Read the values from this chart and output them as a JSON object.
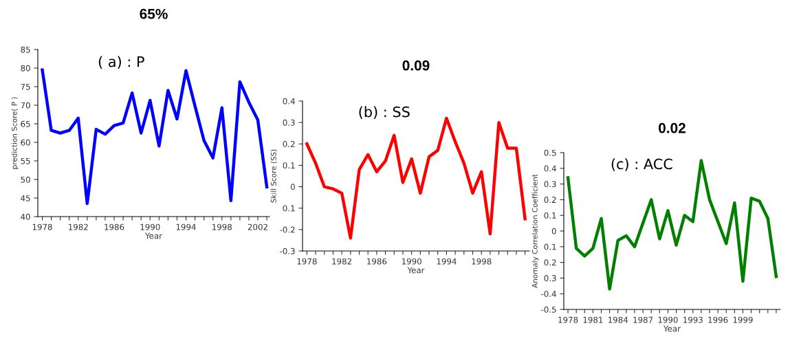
{
  "chart_data": [
    {
      "type": "line",
      "title": "65%",
      "annotations": [
        "( a) : P"
      ],
      "xlabel": "Year",
      "ylabel": "prediction Score( P )",
      "x": [
        1978,
        1979,
        1980,
        1981,
        1982,
        1983,
        1984,
        1985,
        1986,
        1987,
        1988,
        1989,
        1990,
        1991,
        1992,
        1993,
        1994,
        1995,
        1996,
        1997,
        1998,
        1999,
        2000,
        2001,
        2002,
        2003
      ],
      "series": [
        {
          "color": "#0000ff",
          "values": [
            79.5,
            63.2,
            62.5,
            63.2,
            66.5,
            43.5,
            63.5,
            62.2,
            64.5,
            65.2,
            73.3,
            62.5,
            71.3,
            59.0,
            74.0,
            66.3,
            79.3,
            69.8,
            60.5,
            55.8,
            69.3,
            44.3,
            76.3,
            70.8,
            66.0,
            48.0
          ]
        }
      ],
      "xlim": [
        1977.5,
        2003.3
      ],
      "ylim": [
        40,
        85
      ],
      "yticks": [
        40,
        45,
        50,
        55,
        60,
        65,
        70,
        75,
        80,
        85
      ],
      "xticks": [
        1978,
        {
          "value": 1979,
          "label": null
        },
        {
          "value": 1980,
          "label": null
        },
        {
          "value": 1981,
          "label": null
        },
        1982,
        {
          "value": 1983,
          "label": null
        },
        {
          "value": 1984,
          "label": null
        },
        {
          "value": 1985,
          "label": null
        },
        1986,
        {
          "value": 1987,
          "label": null
        },
        {
          "value": 1988,
          "label": null
        },
        {
          "value": 1989,
          "label": null
        },
        1990,
        {
          "value": 1991,
          "label": null
        },
        {
          "value": 1992,
          "label": null
        },
        {
          "value": 1993,
          "label": null
        },
        1994,
        {
          "value": 1995,
          "label": null
        },
        {
          "value": 1996,
          "label": null
        },
        {
          "value": 1997,
          "label": null
        },
        1998,
        {
          "value": 1999,
          "label": null
        },
        {
          "value": 2000,
          "label": null
        },
        {
          "value": 2001,
          "label": null
        },
        2002,
        {
          "value": 2003,
          "label": null
        }
      ],
      "grid": false,
      "marker": "none",
      "line_style": "solid"
    },
    {
      "type": "line",
      "title": "0.09",
      "annotations": [
        "(b) : SS"
      ],
      "xlabel": "Year",
      "ylabel": "Skill Score (SS)",
      "x": [
        1978,
        1979,
        1980,
        1981,
        1982,
        1983,
        1984,
        1985,
        1986,
        1987,
        1988,
        1989,
        1990,
        1991,
        1992,
        1993,
        1994,
        1995,
        1996,
        1997,
        1998,
        1999,
        2000,
        2001,
        2002,
        2003
      ],
      "series": [
        {
          "color": "#ff0000",
          "values": [
            0.2,
            0.11,
            0.0,
            -0.01,
            -0.03,
            -0.24,
            0.08,
            0.15,
            0.07,
            0.12,
            0.24,
            0.02,
            0.13,
            -0.03,
            0.14,
            0.17,
            0.32,
            0.21,
            0.11,
            -0.03,
            0.07,
            -0.22,
            0.3,
            0.18,
            0.18,
            -0.15
          ]
        }
      ],
      "xlim": [
        1977.5,
        2003.5
      ],
      "ylim": [
        -0.3,
        0.4
      ],
      "yticks": [
        {
          "value": -0.3,
          "label": "-0.3"
        },
        {
          "value": -0.2,
          "label": "-0.2"
        },
        {
          "value": -0.1,
          "label": "0.1"
        },
        0,
        0.1,
        0.2,
        0.3,
        0.4
      ],
      "xticks": [
        1978,
        {
          "value": 1979,
          "label": null
        },
        {
          "value": 1980,
          "label": null
        },
        {
          "value": 1981,
          "label": null
        },
        1982,
        {
          "value": 1983,
          "label": null
        },
        {
          "value": 1984,
          "label": null
        },
        {
          "value": 1985,
          "label": null
        },
        1986,
        {
          "value": 1987,
          "label": null
        },
        {
          "value": 1988,
          "label": null
        },
        {
          "value": 1989,
          "label": null
        },
        1990,
        {
          "value": 1991,
          "label": null
        },
        {
          "value": 1992,
          "label": null
        },
        {
          "value": 1993,
          "label": null
        },
        1994,
        {
          "value": 1995,
          "label": null
        },
        {
          "value": 1996,
          "label": null
        },
        {
          "value": 1997,
          "label": null
        },
        1998,
        {
          "value": 1999,
          "label": null
        },
        {
          "value": 2000,
          "label": null
        },
        {
          "value": 2001,
          "label": null
        },
        {
          "value": 2002,
          "label": null
        },
        {
          "value": 2003,
          "label": null
        }
      ],
      "grid": false,
      "marker": "none",
      "line_style": "solid"
    },
    {
      "type": "line",
      "title": "0.02",
      "annotations": [
        "(c) : ACC"
      ],
      "xlabel": "Year",
      "ylabel": "Anomaly Correlation Coefficient",
      "x": [
        1978,
        1979,
        1980,
        1981,
        1982,
        1983,
        1984,
        1985,
        1986,
        1987,
        1988,
        1989,
        1990,
        1991,
        1992,
        1993,
        1994,
        1995,
        1996,
        1997,
        1998,
        1999,
        2000,
        2001,
        2002,
        2003
      ],
      "series": [
        {
          "color": "#007f00",
          "values": [
            0.34,
            -0.11,
            -0.16,
            -0.11,
            0.08,
            -0.37,
            -0.06,
            -0.03,
            -0.1,
            0.05,
            0.2,
            -0.05,
            0.13,
            -0.09,
            0.1,
            0.06,
            0.45,
            0.2,
            0.06,
            -0.08,
            0.18,
            -0.32,
            0.21,
            0.19,
            0.08,
            -0.29
          ]
        }
      ],
      "xlim": [
        1977.5,
        2003.5
      ],
      "ylim": [
        -0.5,
        0.5
      ],
      "yticks": [
        {
          "value": -0.5,
          "label": "-0.5"
        },
        {
          "value": -0.4,
          "label": "-0.4"
        },
        {
          "value": -0.3,
          "label": "0.3"
        },
        {
          "value": -0.2,
          "label": "0.2"
        },
        {
          "value": -0.1,
          "label": "0.1"
        },
        0,
        0.1,
        0.2,
        0.3,
        0.4,
        0.5
      ],
      "xticks": [
        1978,
        {
          "value": 1979,
          "label": null
        },
        {
          "value": 1980,
          "label": null
        },
        1981,
        {
          "value": 1982,
          "label": null
        },
        {
          "value": 1983,
          "label": null
        },
        1984,
        {
          "value": 1985,
          "label": null
        },
        {
          "value": 1986,
          "label": null
        },
        1987,
        {
          "value": 1988,
          "label": null
        },
        {
          "value": 1989,
          "label": null
        },
        1990,
        {
          "value": 1991,
          "label": null
        },
        {
          "value": 1992,
          "label": null
        },
        1993,
        {
          "value": 1994,
          "label": null
        },
        {
          "value": 1995,
          "label": null
        },
        1996,
        {
          "value": 1997,
          "label": null
        },
        {
          "value": 1998,
          "label": null
        },
        1999,
        {
          "value": 2000,
          "label": null
        },
        {
          "value": 2001,
          "label": null
        },
        {
          "value": 2002,
          "label": null
        },
        {
          "value": 2003,
          "label": null
        }
      ],
      "grid": false,
      "marker": "none",
      "line_style": "solid"
    }
  ]
}
